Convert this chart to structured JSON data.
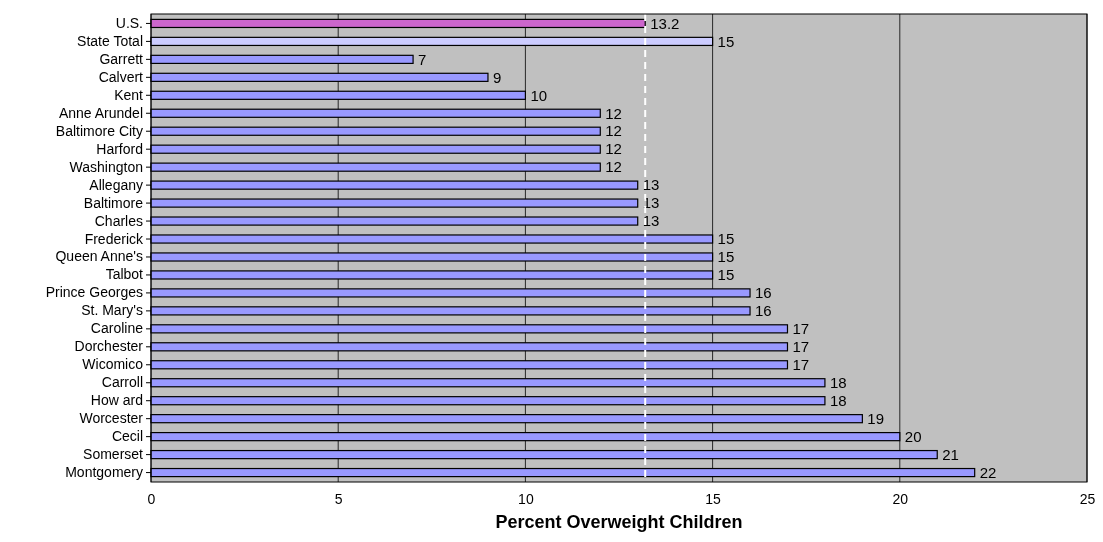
{
  "chart_data": {
    "type": "bar",
    "orientation": "horizontal",
    "xlabel": "Percent Overweight Children",
    "categories": [
      "U.S.",
      "State Total",
      "Garrett",
      "Calvert",
      "Kent",
      "Anne Arundel",
      "Baltimore City",
      "Harford",
      "Washington",
      "Allegany",
      "Baltimore",
      "Charles",
      "Frederick",
      "Queen Anne's",
      "Talbot",
      "Prince Georges",
      "St. Mary's",
      "Caroline",
      "Dorchester",
      "Wicomico",
      "Carroll",
      "How ard",
      "Worcester",
      "Cecil",
      "Somerset",
      "Montgomery"
    ],
    "values": [
      13.2,
      15,
      7,
      9,
      10,
      12,
      12,
      12,
      12,
      13,
      13,
      13,
      15,
      15,
      15,
      16,
      16,
      17,
      17,
      17,
      18,
      18,
      19,
      20,
      21,
      22
    ],
    "colors": [
      "#cc66cc",
      "#ccccff",
      "#9999ff",
      "#9999ff",
      "#9999ff",
      "#9999ff",
      "#9999ff",
      "#9999ff",
      "#9999ff",
      "#9999ff",
      "#9999ff",
      "#9999ff",
      "#9999ff",
      "#9999ff",
      "#9999ff",
      "#9999ff",
      "#9999ff",
      "#9999ff",
      "#9999ff",
      "#9999ff",
      "#9999ff",
      "#9999ff",
      "#9999ff",
      "#9999ff",
      "#9999ff",
      "#9999ff"
    ],
    "xlim": [
      0,
      25
    ],
    "xticks": [
      0,
      5,
      10,
      15,
      20,
      25
    ],
    "grid": "x",
    "data_labels": true,
    "ref_lines": [
      {
        "axis": "x",
        "value": 13.2,
        "color": "#ffffff",
        "line_style": "dashed"
      }
    ]
  }
}
